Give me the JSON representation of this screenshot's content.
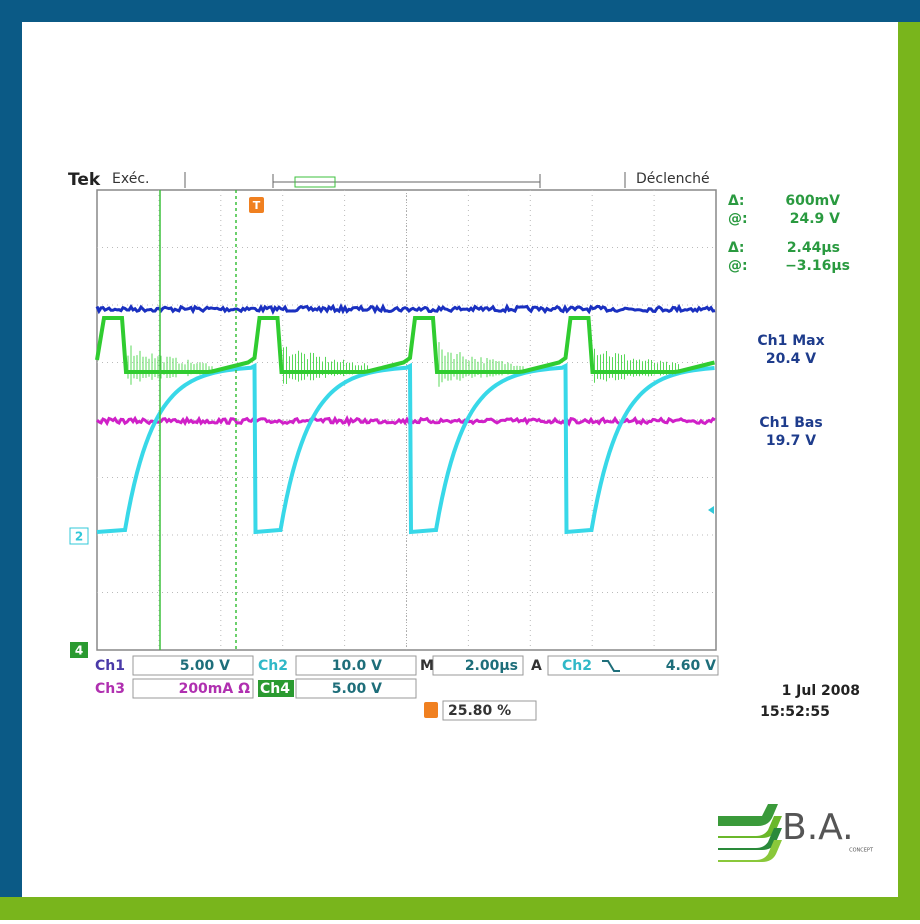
{
  "header": {
    "brand": "Tek",
    "mode": "Exéc.",
    "status": "Déclenché"
  },
  "cursors": [
    {
      "label": "Δ:",
      "value": "600mV"
    },
    {
      "label": "@:",
      "value": "24.9 V"
    },
    {
      "label": "Δ:",
      "value": "2.44µs"
    },
    {
      "label": "@:",
      "value": "−3.16µs"
    }
  ],
  "measurements": [
    {
      "label": "Ch1 Max",
      "value": "20.4 V"
    },
    {
      "label": "Ch1 Bas",
      "value": "19.7 V"
    }
  ],
  "markers": {
    "ch2": "2",
    "ch4": "4",
    "trigger": "T"
  },
  "settings": {
    "ch1": {
      "label": "Ch1",
      "value": "5.00 V"
    },
    "ch2": {
      "label": "Ch2",
      "value": "10.0 V"
    },
    "ch3": {
      "label": "Ch3",
      "value": "200mA Ω"
    },
    "ch4": {
      "label": "Ch4",
      "value": "5.00 V"
    }
  },
  "timebase": {
    "label": "M",
    "value": "2.00µs"
  },
  "trigger": {
    "label": "A",
    "source": "Ch2",
    "level": "4.60 V",
    "position": "25.80 %"
  },
  "date": "1 Jul  2008",
  "time": "15:52:55",
  "logo": {
    "name": "B.A.",
    "tagline": "CONCEPT"
  }
}
